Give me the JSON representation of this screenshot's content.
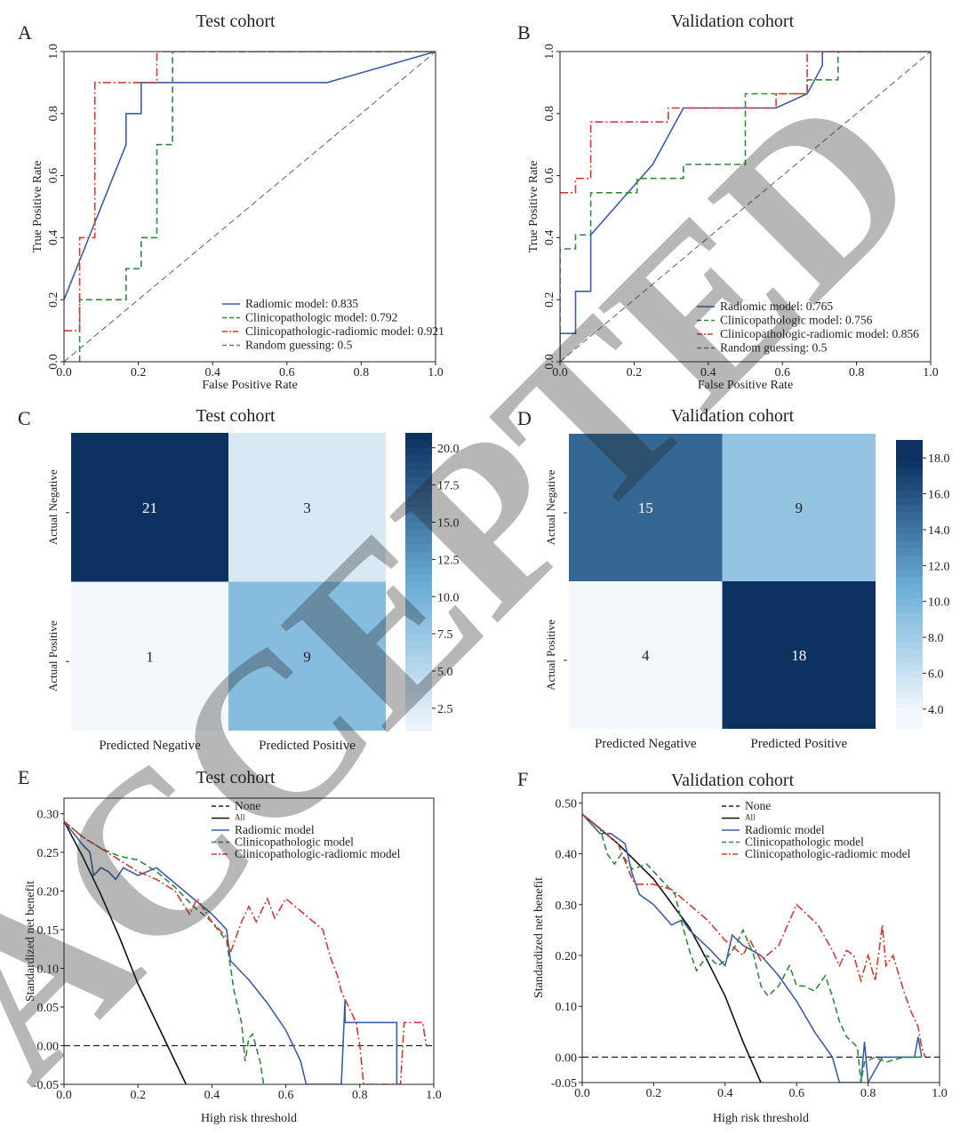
{
  "colors": {
    "radiomic": "#3a5fa8",
    "clinico": "#2f8a3a",
    "combined": "#d9382f",
    "random": "#777777",
    "none": "#222222",
    "all": "#111111",
    "heat_low": "#f3f8fd",
    "heat_high": "#0d3262"
  },
  "watermark": "ACCEPTED",
  "panels": [
    {
      "letter": "A",
      "title": "Test cohort"
    },
    {
      "letter": "B",
      "title": "Validation cohort"
    },
    {
      "letter": "C",
      "title": "Test cohort"
    },
    {
      "letter": "D",
      "title": "Validation cohort"
    },
    {
      "letter": "E",
      "title": "Test cohort"
    },
    {
      "letter": "F",
      "title": "Validation cohort"
    }
  ],
  "chart_data": [
    {
      "panel": "A",
      "type": "line",
      "title": "Test cohort",
      "xlabel": "False Positive Rate",
      "ylabel": "True Positive Rate",
      "xlim": [
        0,
        1
      ],
      "ylim": [
        0,
        1
      ],
      "xticks": [
        "0.0",
        "0.2",
        "0.4",
        "0.6",
        "0.8",
        "1.0"
      ],
      "yticks": [
        "0.0",
        "0.2",
        "0.4",
        "0.6",
        "0.8",
        "1.0"
      ],
      "legend_position": "bottom-right",
      "series": [
        {
          "name": "Radiomic model: 0.835",
          "style": "solid",
          "color_key": "radiomic",
          "x": [
            0,
            0.167,
            0.167,
            0.208,
            0.208,
            0.708,
            1.0
          ],
          "y": [
            0.2,
            0.7,
            0.8,
            0.8,
            0.9,
            0.9,
            1.0
          ]
        },
        {
          "name": "Clinicopathologic  model: 0.792",
          "style": "dashed",
          "color_key": "clinico",
          "x": [
            0.042,
            0.042,
            0.167,
            0.167,
            0.208,
            0.208,
            0.25,
            0.25,
            0.292,
            0.292,
            1.0
          ],
          "y": [
            0.0,
            0.2,
            0.2,
            0.3,
            0.3,
            0.4,
            0.4,
            0.7,
            0.7,
            1.0,
            1.0
          ]
        },
        {
          "name": "Clinicopathologic-radiomic model: 0.921",
          "style": "dashdot",
          "color_key": "combined",
          "x": [
            0,
            0.042,
            0.042,
            0.083,
            0.083,
            0.083,
            0.25,
            0.25,
            1.0
          ],
          "y": [
            0.1,
            0.1,
            0.4,
            0.4,
            0.7,
            0.9,
            0.9,
            1.0,
            1.0
          ]
        },
        {
          "name": "Random guessing: 0.5",
          "style": "dashed",
          "color_key": "random",
          "x": [
            0,
            1
          ],
          "y": [
            0,
            1
          ]
        }
      ]
    },
    {
      "panel": "B",
      "type": "line",
      "title": "Validation cohort",
      "xlabel": "False Positive Rate",
      "ylabel": "True Positive Rate",
      "xlim": [
        0,
        1
      ],
      "ylim": [
        0,
        1
      ],
      "xticks": [
        "0.0",
        "0.2",
        "0.4",
        "0.6",
        "0.8",
        "1.0"
      ],
      "yticks": [
        "0.0",
        "0.2",
        "0.4",
        "0.6",
        "0.8",
        "1.0"
      ],
      "legend_position": "bottom-right",
      "series": [
        {
          "name": "Radiomic model: 0.765",
          "style": "solid",
          "color_key": "radiomic",
          "x": [
            0,
            0,
            0.042,
            0.042,
            0.083,
            0.083,
            0.25,
            0.333,
            0.583,
            0.667,
            0.708,
            0.708,
            1.0
          ],
          "y": [
            0,
            0.091,
            0.091,
            0.227,
            0.227,
            0.409,
            0.636,
            0.818,
            0.818,
            0.864,
            0.955,
            1.0,
            1.0
          ]
        },
        {
          "name": "Clinicopathologic  model: 0.756",
          "style": "dashed",
          "color_key": "clinico",
          "x": [
            0,
            0,
            0.042,
            0.042,
            0.083,
            0.083,
            0.208,
            0.208,
            0.333,
            0.333,
            0.5,
            0.5,
            0.667,
            0.667,
            0.75,
            0.75,
            1.0
          ],
          "y": [
            0,
            0.364,
            0.364,
            0.409,
            0.409,
            0.545,
            0.545,
            0.591,
            0.591,
            0.636,
            0.636,
            0.864,
            0.864,
            0.909,
            0.909,
            1.0,
            1.0
          ]
        },
        {
          "name": "Clinicopathologic-radiomic model: 0.856",
          "style": "dashdot",
          "color_key": "combined",
          "x": [
            0.0,
            0.042,
            0.042,
            0.083,
            0.083,
            0.292,
            0.292,
            0.583,
            0.583,
            0.667,
            0.667,
            1.0
          ],
          "y": [
            0.545,
            0.545,
            0.591,
            0.591,
            0.773,
            0.773,
            0.818,
            0.818,
            0.864,
            0.864,
            1.0,
            1.0
          ]
        },
        {
          "name": "Random guessing: 0.5",
          "style": "dashed",
          "color_key": "random",
          "x": [
            0,
            1
          ],
          "y": [
            0,
            1
          ]
        }
      ]
    },
    {
      "panel": "C",
      "type": "heatmap",
      "title": "Test cohort",
      "xticklabels": [
        "Predicted Negative",
        "Predicted Positive"
      ],
      "yticklabels": [
        "Actual Negative",
        "Actual Positive"
      ],
      "values": [
        [
          21,
          3
        ],
        [
          1,
          9
        ]
      ],
      "vmin": 1,
      "vmax": 21,
      "colorbar_ticks": [
        "20.0",
        "17.5",
        "15.0",
        "12.5",
        "10.0",
        "7.5",
        "5.0",
        "2.5"
      ]
    },
    {
      "panel": "D",
      "type": "heatmap",
      "title": "Validation cohort",
      "xticklabels": [
        "Predicted Negative",
        "Predicted Positive"
      ],
      "yticklabels": [
        "Actual Negative",
        "Actual Positive"
      ],
      "values": [
        [
          15,
          9
        ],
        [
          4,
          18
        ]
      ],
      "vmin": 4,
      "vmax": 18,
      "colorbar_ticks": [
        "18.0",
        "16.0",
        "14.0",
        "12.0",
        "10.0",
        "8.0",
        "6.0",
        "4.0"
      ]
    },
    {
      "panel": "E",
      "type": "line",
      "title": "Test cohort",
      "xlabel": "High risk threshold",
      "ylabel": "Standardized net benefit",
      "xlim": [
        0,
        1
      ],
      "ylim": [
        -0.05,
        0.32
      ],
      "xticks": [
        "0.0",
        "0.2",
        "0.4",
        "0.6",
        "0.8",
        "1.0"
      ],
      "yticks": [
        "-0.05",
        "0.00",
        "0.05",
        "0.10",
        "0.15",
        "0.20",
        "0.25",
        "0.30"
      ],
      "legend_position": "top-center",
      "series": [
        {
          "name": "None",
          "style": "dashed",
          "color_key": "none",
          "x": [
            0,
            1
          ],
          "y": [
            0,
            0
          ]
        },
        {
          "name": "All",
          "style": "solid",
          "color_key": "all",
          "x": [
            0,
            0.05,
            0.1,
            0.15,
            0.2,
            0.25,
            0.3,
            0.33
          ],
          "y": [
            0.29,
            0.245,
            0.195,
            0.14,
            0.08,
            0.03,
            -0.02,
            -0.05
          ]
        },
        {
          "name": "Radiomic model",
          "style": "solid",
          "color_key": "radiomic",
          "x": [
            0,
            0.05,
            0.07,
            0.08,
            0.1,
            0.12,
            0.14,
            0.16,
            0.2,
            0.25,
            0.3,
            0.35,
            0.4,
            0.44,
            0.45,
            0.5,
            0.55,
            0.6,
            0.64,
            0.655,
            0.75,
            0.76,
            0.76,
            0.77,
            0.9,
            0.9
          ],
          "y": [
            0.29,
            0.26,
            0.25,
            0.22,
            0.23,
            0.225,
            0.215,
            0.23,
            0.22,
            0.23,
            0.21,
            0.19,
            0.17,
            0.15,
            0.11,
            0.085,
            0.055,
            0.02,
            -0.02,
            -0.05,
            -0.05,
            0.06,
            0.03,
            0.03,
            0.03,
            -0.05
          ]
        },
        {
          "name": "Clinicopathologic  model",
          "style": "dashed",
          "color_key": "clinico",
          "x": [
            0,
            0.05,
            0.1,
            0.15,
            0.2,
            0.25,
            0.3,
            0.35,
            0.4,
            0.44,
            0.46,
            0.48,
            0.49,
            0.5,
            0.51,
            0.53,
            0.54
          ],
          "y": [
            0.29,
            0.27,
            0.255,
            0.245,
            0.24,
            0.225,
            0.205,
            0.18,
            0.16,
            0.135,
            0.07,
            0.03,
            -0.02,
            0.01,
            0.015,
            -0.02,
            -0.05
          ]
        },
        {
          "name": "Clinicopathologic-radiomic model",
          "style": "dashdot",
          "color_key": "combined",
          "x": [
            0,
            0.05,
            0.1,
            0.15,
            0.2,
            0.25,
            0.3,
            0.34,
            0.36,
            0.4,
            0.44,
            0.45,
            0.48,
            0.5,
            0.52,
            0.55,
            0.57,
            0.6,
            0.65,
            0.7,
            0.72,
            0.74,
            0.75,
            0.77,
            0.79,
            0.8,
            0.81,
            0.91,
            0.92,
            0.97,
            0.98
          ],
          "y": [
            0.29,
            0.27,
            0.255,
            0.24,
            0.225,
            0.215,
            0.2,
            0.17,
            0.19,
            0.16,
            0.14,
            0.12,
            0.16,
            0.18,
            0.16,
            0.19,
            0.165,
            0.19,
            0.17,
            0.15,
            0.115,
            0.09,
            0.07,
            0.05,
            0.03,
            0.0,
            -0.05,
            -0.05,
            0.03,
            0.03,
            0.0
          ]
        }
      ]
    },
    {
      "panel": "F",
      "type": "line",
      "title": "Validation cohort",
      "xlabel": "High risk threshold",
      "ylabel": "Standardized net benefit",
      "xlim": [
        0,
        1
      ],
      "ylim": [
        -0.05,
        0.52
      ],
      "xticks": [
        "0.0",
        "0.2",
        "0.4",
        "0.6",
        "0.8",
        "1.0"
      ],
      "yticks": [
        "-0.05",
        "0.00",
        "0.10",
        "0.20",
        "0.30",
        "0.40",
        "0.50"
      ],
      "legend_position": "top-center",
      "series": [
        {
          "name": "None",
          "style": "dashed",
          "color_key": "none",
          "x": [
            0,
            1
          ],
          "y": [
            0,
            0
          ]
        },
        {
          "name": "All",
          "style": "solid",
          "color_key": "all",
          "x": [
            0,
            0.1,
            0.2,
            0.3,
            0.35,
            0.4,
            0.45,
            0.5
          ],
          "y": [
            0.478,
            0.42,
            0.35,
            0.255,
            0.19,
            0.12,
            0.03,
            -0.05
          ]
        },
        {
          "name": "Radiomic model",
          "style": "solid",
          "color_key": "radiomic",
          "x": [
            0,
            0.05,
            0.08,
            0.1,
            0.12,
            0.14,
            0.16,
            0.2,
            0.25,
            0.28,
            0.3,
            0.33,
            0.36,
            0.4,
            0.42,
            0.45,
            0.5,
            0.55,
            0.6,
            0.65,
            0.7,
            0.72,
            0.78,
            0.79,
            0.8,
            0.84,
            0.93,
            0.94,
            0.95
          ],
          "y": [
            0.478,
            0.44,
            0.44,
            0.43,
            0.42,
            0.36,
            0.32,
            0.3,
            0.26,
            0.27,
            0.25,
            0.23,
            0.21,
            0.18,
            0.24,
            0.22,
            0.2,
            0.16,
            0.11,
            0.05,
            0.0,
            -0.05,
            -0.05,
            0.03,
            -0.05,
            0.0,
            0.0,
            0.04,
            0.0
          ]
        },
        {
          "name": "Clinicopathologic  model",
          "style": "dashed",
          "color_key": "clinico",
          "x": [
            0,
            0.05,
            0.07,
            0.09,
            0.11,
            0.14,
            0.18,
            0.22,
            0.26,
            0.28,
            0.3,
            0.32,
            0.35,
            0.38,
            0.4,
            0.43,
            0.45,
            0.48,
            0.5,
            0.52,
            0.55,
            0.58,
            0.6,
            0.62,
            0.65,
            0.68,
            0.7,
            0.72,
            0.74,
            0.77,
            0.78,
            0.79,
            0.82,
            0.85,
            0.9,
            0.93,
            0.96
          ],
          "y": [
            0.478,
            0.45,
            0.4,
            0.38,
            0.4,
            0.37,
            0.38,
            0.35,
            0.32,
            0.26,
            0.21,
            0.17,
            0.2,
            0.18,
            0.19,
            0.22,
            0.25,
            0.2,
            0.14,
            0.12,
            0.14,
            0.18,
            0.14,
            0.14,
            0.13,
            0.16,
            0.12,
            0.07,
            0.04,
            0.02,
            -0.05,
            -0.01,
            0.0,
            -0.01,
            0.0,
            0.0,
            0.0
          ]
        },
        {
          "name": "Clinicopathologic-radiomic model",
          "style": "dashdot",
          "color_key": "combined",
          "x": [
            0,
            0.05,
            0.1,
            0.14,
            0.15,
            0.2,
            0.25,
            0.3,
            0.35,
            0.4,
            0.45,
            0.47,
            0.5,
            0.55,
            0.6,
            0.63,
            0.66,
            0.7,
            0.72,
            0.74,
            0.76,
            0.78,
            0.8,
            0.82,
            0.84,
            0.85,
            0.87,
            0.9,
            0.92,
            0.94,
            0.95,
            0.96
          ],
          "y": [
            0.478,
            0.45,
            0.42,
            0.35,
            0.34,
            0.34,
            0.33,
            0.3,
            0.27,
            0.23,
            0.2,
            0.23,
            0.19,
            0.22,
            0.3,
            0.28,
            0.26,
            0.21,
            0.18,
            0.21,
            0.2,
            0.15,
            0.2,
            0.15,
            0.26,
            0.18,
            0.2,
            0.13,
            0.09,
            0.06,
            0.02,
            0.0
          ]
        }
      ]
    }
  ]
}
